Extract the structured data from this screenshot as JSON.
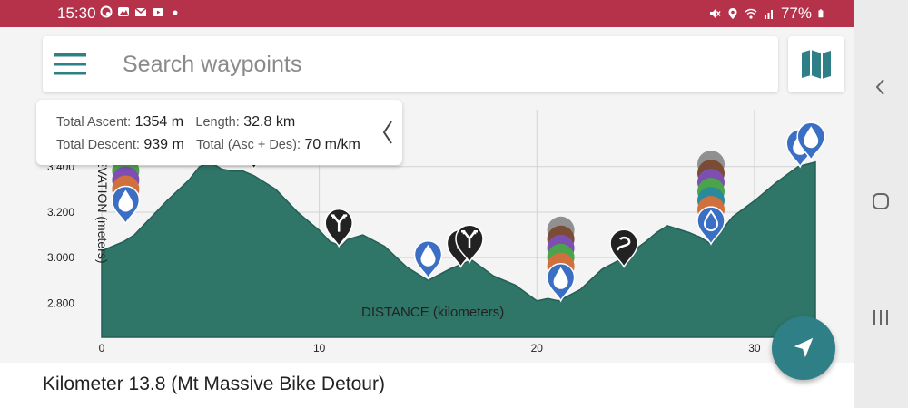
{
  "status_bar": {
    "time": "15:30",
    "battery": "77%",
    "notification_icons": [
      "app-icon",
      "photo-icon",
      "mail-icon",
      "youtube-icon",
      "dot-icon"
    ],
    "system_icons": [
      "mute-icon",
      "location-icon",
      "wifi-icon",
      "signal-icon",
      "battery-icon"
    ]
  },
  "search": {
    "placeholder": "Search waypoints"
  },
  "stats": {
    "total_ascent_label": "Total Ascent:",
    "total_ascent_value": "1354 m",
    "length_label": "Length:",
    "length_value": "32.8 km",
    "total_descent_label": "Total Descent:",
    "total_descent_value": "939 m",
    "total_asc_des_label": "Total (Asc + Des):",
    "total_asc_des_value": "70 m/km"
  },
  "chart_data": {
    "type": "area",
    "xlabel": "DISTANCE (kilometers)",
    "ylabel": "ELEVATION (meters)",
    "xlim": [
      0,
      32.8
    ],
    "ylim": [
      2650,
      3650
    ],
    "x_ticks": [
      0,
      10,
      20,
      30
    ],
    "x_tick_labels": [
      "0",
      "10",
      "20",
      "30"
    ],
    "y_ticks": [
      2800,
      3000,
      3200,
      3400
    ],
    "y_tick_labels": [
      "2.800",
      "3.000",
      "3.200",
      "3.400"
    ],
    "grid": true,
    "fill_color": "#2f7568",
    "x": [
      0,
      0.5,
      1,
      1.5,
      2,
      3,
      4,
      4.5,
      5,
      5.5,
      6,
      6.5,
      7,
      8,
      9,
      10,
      10.5,
      11,
      11.3,
      12,
      13,
      14,
      15,
      16,
      17,
      18,
      19,
      20,
      20.5,
      21,
      22,
      23,
      24,
      25,
      25.5,
      26,
      27,
      27.5,
      28,
      28.5,
      29,
      30,
      31,
      32,
      32.8
    ],
    "y": [
      3030,
      3050,
      3070,
      3100,
      3150,
      3250,
      3340,
      3400,
      3420,
      3390,
      3380,
      3380,
      3360,
      3300,
      3200,
      3120,
      3070,
      3050,
      3080,
      3100,
      3050,
      2960,
      2900,
      2950,
      2990,
      2920,
      2880,
      2810,
      2820,
      2810,
      2860,
      2950,
      3000,
      3070,
      3110,
      3140,
      3110,
      3090,
      3060,
      3120,
      3180,
      3250,
      3330,
      3400,
      3420
    ]
  },
  "waypoints": [
    {
      "x": 1.1,
      "y": 3150,
      "kind": "water",
      "stack": [
        "#4ba34b",
        "#7c4fb0",
        "#d0703c"
      ]
    },
    {
      "x": 4.7,
      "y": 3430,
      "kind": "direction",
      "stack": [
        "#4ba34b"
      ]
    },
    {
      "x": 5.3,
      "y": 3420,
      "kind": "direction",
      "stack": []
    },
    {
      "x": 7.0,
      "y": 3390,
      "kind": "turn",
      "stack": []
    },
    {
      "x": 10.9,
      "y": 3050,
      "kind": "fork",
      "stack": []
    },
    {
      "x": 15.0,
      "y": 2910,
      "kind": "water",
      "stack": []
    },
    {
      "x": 16.5,
      "y": 2960,
      "kind": "direction",
      "stack": []
    },
    {
      "x": 16.9,
      "y": 2980,
      "kind": "fork",
      "stack": []
    },
    {
      "x": 21.1,
      "y": 2810,
      "kind": "water",
      "stack": [
        "#909090",
        "#7a4b35",
        "#7c4fb0",
        "#4ba34b",
        "#d0703c"
      ]
    },
    {
      "x": 24.0,
      "y": 2960,
      "kind": "route",
      "stack": []
    },
    {
      "x": 28.0,
      "y": 3060,
      "kind": "water-outline",
      "stack": [
        "#909090",
        "#7a4b35",
        "#7c4fb0",
        "#4ba34b",
        "#2a8a9c",
        "#d0703c"
      ]
    },
    {
      "x": 32.1,
      "y": 3400,
      "kind": "water",
      "stack": []
    },
    {
      "x": 32.6,
      "y": 3430,
      "kind": "water",
      "stack": []
    }
  ],
  "location_label": "Kilometer 13.8 (Mt Massive Bike Detour)"
}
